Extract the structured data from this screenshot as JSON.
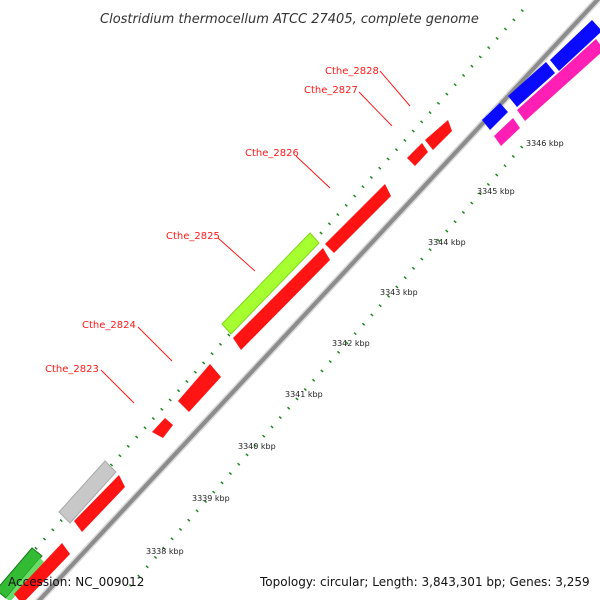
{
  "title": "Clostridium thermocellum ATCC 27405, complete genome",
  "footer": {
    "accession": "Accession: NC_009012",
    "summary": "Topology: circular; Length: 3,843,301 bp; Genes: 3,259"
  },
  "scale_labels": [
    "3338 kbp",
    "3339 kbp",
    "3340 kbp",
    "3341 kbp",
    "3342 kbp",
    "3343 kbp",
    "3344 kbp",
    "3345 kbp",
    "3346 kbp"
  ],
  "gene_labels": [
    "Cthe_2823",
    "Cthe_2824",
    "Cthe_2825",
    "Cthe_2826",
    "Cthe_2827",
    "Cthe_2828"
  ],
  "colors": {
    "backbone": "#8c8c8c",
    "cds_red": "#ff1414",
    "highlight_green": "#a6ff2e",
    "gray_feature": "#c8c8c8",
    "green_feature": "#33bb33",
    "blue_feature": "#0a0aff",
    "pink_feature": "#ff1fb4",
    "tick_green": "#1d8a1d",
    "label_red": "#ff1a1a"
  }
}
